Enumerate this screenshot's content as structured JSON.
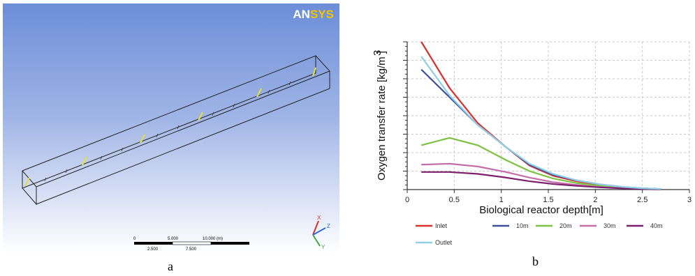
{
  "panel_a": {
    "logo": {
      "part1": "AN",
      "part2": "SYS"
    },
    "scale": {
      "labels": [
        "0",
        "5.000",
        "10.000",
        "(m)",
        "2.500",
        "7.500"
      ]
    },
    "triad": {
      "x": "X",
      "y": "Y",
      "z": "Z"
    },
    "caption": "a"
  },
  "panel_b": {
    "caption": "b"
  },
  "chart_data": {
    "type": "line",
    "xlabel": "Biological reactor depth[m]",
    "ylabel": "Oxygen transfer rate [kg/m ]",
    "ylabel_superscript": "3",
    "xlim": [
      0,
      3
    ],
    "xticks": [
      "0",
      "0.5",
      "1",
      "1.5",
      "2",
      "2.5",
      "3"
    ],
    "ylim": [
      0,
      8
    ],
    "grid": true,
    "legend_position": "bottom",
    "series": [
      {
        "name": "Inlet",
        "color": "#d9302c",
        "x": [
          0.15,
          0.45,
          0.75,
          1.05,
          1.3,
          1.55,
          1.8,
          2.05,
          2.3,
          2.5,
          2.7
        ],
        "y": [
          8.0,
          5.5,
          3.6,
          2.3,
          1.3,
          0.75,
          0.45,
          0.25,
          0.12,
          0.06,
          0.03
        ]
      },
      {
        "name": "10m",
        "color": "#3c4f9c",
        "x": [
          0.15,
          0.45,
          0.75,
          1.05,
          1.3,
          1.55,
          1.8,
          2.05,
          2.3,
          2.5,
          2.7
        ],
        "y": [
          6.5,
          5.0,
          3.5,
          2.3,
          1.35,
          0.8,
          0.5,
          0.28,
          0.14,
          0.07,
          0.03
        ]
      },
      {
        "name": "20m",
        "color": "#7dc242",
        "x": [
          0.15,
          0.45,
          0.75,
          1.05,
          1.3,
          1.55,
          1.8,
          2.05,
          2.3,
          2.5,
          2.7
        ],
        "y": [
          2.4,
          2.8,
          2.4,
          1.6,
          1.0,
          0.6,
          0.35,
          0.2,
          0.1,
          0.05,
          0.02
        ]
      },
      {
        "name": "30m",
        "color": "#c46ea8",
        "x": [
          0.15,
          0.45,
          0.75,
          1.05,
          1.3,
          1.55,
          1.8,
          2.05,
          2.3,
          2.5,
          2.7
        ],
        "y": [
          1.35,
          1.4,
          1.25,
          0.95,
          0.65,
          0.4,
          0.25,
          0.14,
          0.07,
          0.04,
          0.02
        ]
      },
      {
        "name": "40m",
        "color": "#7b1f6b",
        "x": [
          0.15,
          0.45,
          0.75,
          1.05,
          1.3,
          1.55,
          1.8,
          2.05,
          2.3,
          2.5,
          2.7
        ],
        "y": [
          0.95,
          0.95,
          0.85,
          0.65,
          0.45,
          0.3,
          0.2,
          0.12,
          0.06,
          0.03,
          0.01
        ]
      },
      {
        "name": "Outlet",
        "color": "#8fd0e6",
        "x": [
          0.15,
          0.45,
          0.75,
          1.05,
          1.3,
          1.55,
          1.8,
          2.05,
          2.3,
          2.5,
          2.7
        ],
        "y": [
          7.2,
          5.1,
          3.5,
          2.3,
          1.4,
          0.85,
          0.5,
          0.28,
          0.14,
          0.07,
          0.03
        ]
      }
    ]
  }
}
